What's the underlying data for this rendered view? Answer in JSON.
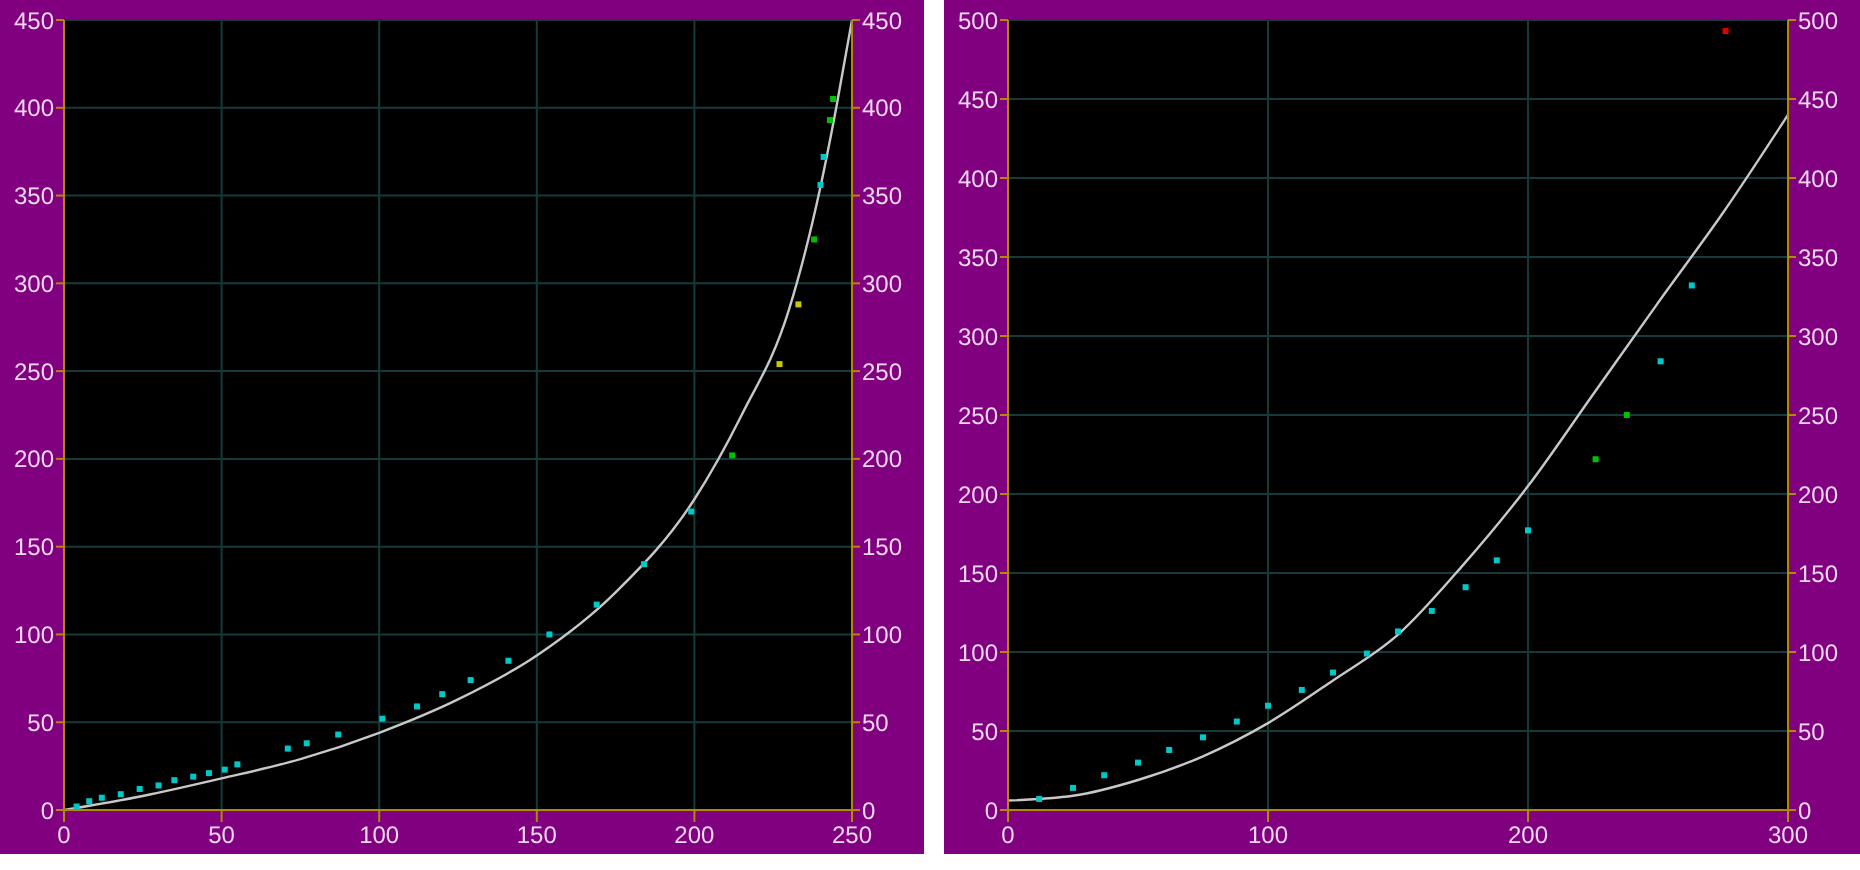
{
  "chart_data": [
    {
      "type": "scatter",
      "xlim": [
        0,
        250
      ],
      "xticks": [
        0,
        50,
        100,
        150,
        200,
        250
      ],
      "ylim": [
        0,
        450
      ],
      "yticks": [
        0,
        50,
        100,
        150,
        200,
        250,
        300,
        350,
        400,
        450
      ],
      "y2lim": [
        0,
        450
      ],
      "y2ticks": [
        0,
        50,
        100,
        150,
        200,
        250,
        300,
        350,
        400,
        450
      ],
      "grid": true,
      "legend": false,
      "series": [
        {
          "marker": "square",
          "color": "#00c8c8",
          "x": [
            4,
            8,
            12,
            18,
            24,
            30,
            35,
            41,
            46,
            51,
            55,
            71,
            77,
            87,
            101,
            112,
            120,
            129,
            141,
            154,
            169,
            184,
            199,
            212,
            227,
            233,
            238,
            240,
            241,
            243,
            244
          ],
          "values": [
            2,
            5,
            7,
            9,
            12,
            14,
            17,
            19,
            21,
            23,
            26,
            35,
            38,
            43,
            52,
            59,
            66,
            74,
            85,
            100,
            117,
            140,
            170,
            202,
            254,
            288,
            325,
            356,
            372,
            393,
            405
          ],
          "colors": [
            "#00c8c8",
            "#00c8c8",
            "#00c8c8",
            "#00c8c8",
            "#00c8c8",
            "#00c8c8",
            "#00c8c8",
            "#00c8c8",
            "#00c8c8",
            "#00c8c8",
            "#00c8c8",
            "#00c8c8",
            "#00c8c8",
            "#00c8c8",
            "#00c8c8",
            "#00c8c8",
            "#00c8c8",
            "#00c8c8",
            "#00c8c8",
            "#00c8c8",
            "#00c8c8",
            "#00c8c8",
            "#00c8c8",
            "#00c000",
            "#c8c800",
            "#c8c800",
            "#00c000",
            "#00c8c8",
            "#00c8c8",
            "#00c000",
            "#00c000"
          ]
        },
        {
          "type": "line",
          "marker": "none",
          "color": "#c8c8c8",
          "x": [
            0,
            25,
            50,
            75,
            100,
            125,
            150,
            175,
            200,
            215,
            230,
            240,
            245,
            250
          ],
          "values": [
            0,
            8,
            18,
            29,
            44,
            63,
            88,
            124,
            177,
            225,
            285,
            355,
            400,
            450
          ]
        }
      ]
    },
    {
      "type": "scatter",
      "xlim": [
        0,
        300
      ],
      "xticks": [
        0,
        100,
        200,
        300
      ],
      "ylim": [
        0,
        500
      ],
      "yticks": [
        0,
        50,
        100,
        150,
        200,
        250,
        300,
        350,
        400,
        450,
        500
      ],
      "y2lim": [
        0,
        500
      ],
      "y2ticks": [
        0,
        50,
        100,
        150,
        200,
        250,
        300,
        350,
        400,
        450,
        500
      ],
      "grid": true,
      "legend": false,
      "series": [
        {
          "marker": "square",
          "color": "#00c8c8",
          "x": [
            12,
            25,
            37,
            50,
            62,
            75,
            88,
            100,
            113,
            125,
            138,
            150,
            163,
            176,
            188,
            200,
            226,
            238,
            251,
            263,
            276
          ],
          "values": [
            7,
            14,
            22,
            30,
            38,
            46,
            56,
            66,
            76,
            87,
            99,
            113,
            126,
            141,
            158,
            177,
            222,
            250,
            284,
            332,
            493
          ],
          "colors": [
            "#00c8c8",
            "#00c8c8",
            "#00c8c8",
            "#00c8c8",
            "#00c8c8",
            "#00c8c8",
            "#00c8c8",
            "#00c8c8",
            "#00c8c8",
            "#00c8c8",
            "#00c8c8",
            "#00c8c8",
            "#00c8c8",
            "#00c8c8",
            "#00c8c8",
            "#00c8c8",
            "#00c000",
            "#00c000",
            "#00c8c8",
            "#00c8c8",
            "#e00000"
          ]
        },
        {
          "type": "line",
          "marker": "none",
          "color": "#c8c8c8",
          "x": [
            0,
            25,
            50,
            75,
            100,
            125,
            150,
            175,
            200,
            225,
            250,
            275,
            300
          ],
          "values": [
            6,
            9,
            19,
            34,
            55,
            82,
            111,
            155,
            205,
            263,
            321,
            378,
            440
          ]
        }
      ]
    }
  ]
}
